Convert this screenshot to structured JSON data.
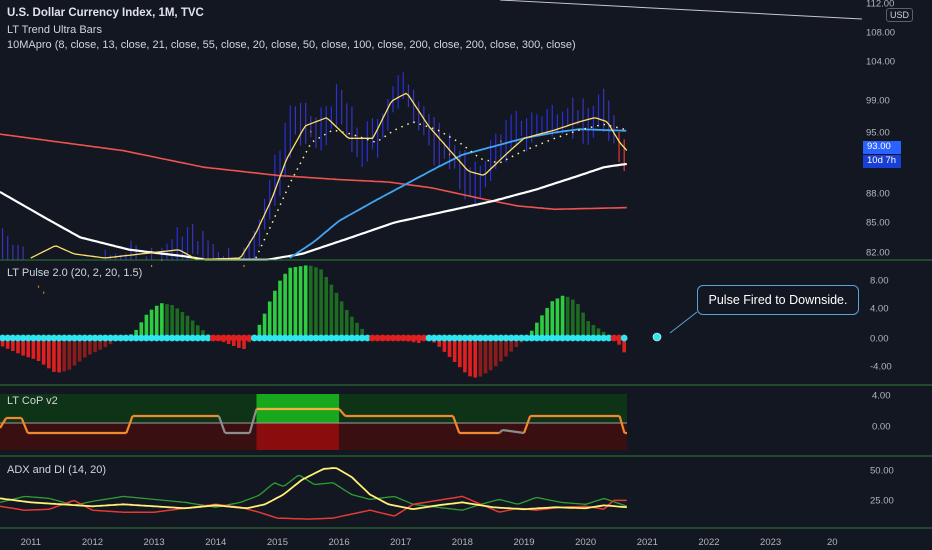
{
  "header": {
    "title": "U.S. Dollar Currency Index, 1M, TVC",
    "indicator1": "LT Trend Ultra Bars",
    "indicator2": "10MApro (8, close, 13, close, 21, close, 55, close, 20, close, 50, close, 100, close, 200, close, 200, close, 300, close)",
    "currency_badge": "USD"
  },
  "annotation": {
    "text": "Pulse Fired to Downside."
  },
  "price_tags": {
    "last_price": "93.00",
    "countdown": "10d 7h"
  },
  "colors": {
    "background": "#131722",
    "bull": "#2f7d2f",
    "bear": "#d32f2f",
    "dot": "#2ee6f0",
    "price_tag": "#2962ff"
  },
  "chart_data": [
    {
      "type": "bar",
      "name": "price",
      "y_ticks": [
        "112.00",
        "108.00",
        "104.00",
        "99.00",
        "95.00",
        "93.00",
        "88.00",
        "85.00",
        "82.00"
      ],
      "ylim": [
        81,
        112
      ],
      "note_series": [
        "MA 8",
        "MA 20",
        "MA 50",
        "MA 200",
        "MA 300"
      ]
    },
    {
      "type": "bar",
      "title": "LT Pulse 2.0 (20, 2, 20, 1.5)",
      "y_ticks": [
        "8.00",
        "4.00",
        "0.00",
        "-4.00"
      ],
      "ylim": [
        -6,
        10
      ]
    },
    {
      "type": "line",
      "title": "LT CoP v2",
      "y_ticks": [
        "4.00",
        "0.00"
      ]
    },
    {
      "type": "line",
      "title": "ADX and DI (14, 20)",
      "y_ticks": [
        "50.00",
        "25.00"
      ],
      "ylim": [
        0,
        65
      ]
    }
  ],
  "x_axis": {
    "labels": [
      "2011",
      "2012",
      "2013",
      "2014",
      "2015",
      "2016",
      "2017",
      "2018",
      "2019",
      "2020",
      "2021",
      "2022",
      "2023",
      "20"
    ],
    "start": 2010.5,
    "end": 2024.45
  }
}
